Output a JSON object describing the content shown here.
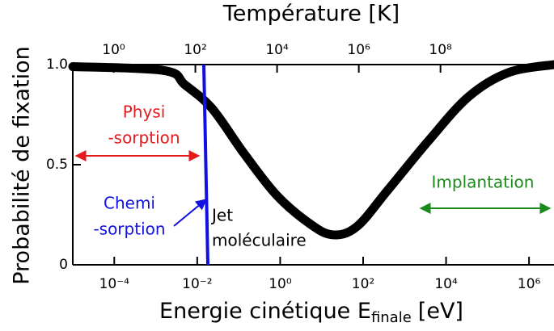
{
  "chart_data": {
    "type": "line",
    "x2_label": "Température [K]",
    "y_label": "Probabilité de fixation",
    "x_label": "Energie cinétique E",
    "x_label_sub": "finale",
    "x_label_unit": "[eV]",
    "xscale": "log",
    "xlim": [
      1e-05,
      4000000
    ],
    "xticks": [
      {
        "value": 0.0001,
        "label": "10⁻⁴"
      },
      {
        "value": 0.01,
        "label": "10⁻²"
      },
      {
        "value": 1,
        "label": "10⁰"
      },
      {
        "value": 100,
        "label": "10²"
      },
      {
        "value": 10000,
        "label": "10⁴"
      },
      {
        "value": 1000000,
        "label": "10⁶"
      }
    ],
    "x2lim": [
      0.1,
      60000000000
    ],
    "x2ticks": [
      {
        "value": 1,
        "label": "10⁰"
      },
      {
        "value": 100,
        "label": "10²"
      },
      {
        "value": 10000,
        "label": "10⁴"
      },
      {
        "value": 1000000,
        "label": "10⁶"
      },
      {
        "value": 100000000,
        "label": "10⁸"
      }
    ],
    "ylim": [
      0,
      1
    ],
    "yticks": [
      0,
      {
        "value": 0.5,
        "label": "0.5"
      },
      {
        "value": 1,
        "label": "1.0"
      }
    ],
    "x": [
      1e-05,
      0.0016,
      0.005,
      0.023,
      0.13,
      0.8,
      4.8,
      18,
      70,
      400,
      3800,
      35000,
      320000,
      4000000
    ],
    "series": [
      {
        "color": "#000000",
        "values": [
          0.99,
          0.97,
          0.9,
          0.78,
          0.56,
          0.35,
          0.21,
          0.15,
          0.19,
          0.375,
          0.62,
          0.84,
          0.96,
          1.0
        ]
      }
    ],
    "annotations": {
      "physi": [
        "Physi",
        "-sorption"
      ],
      "chemi": [
        "Chemi",
        "-sorption"
      ],
      "jet": [
        "Jet",
        "moléculaire"
      ],
      "implantation": "Implantation"
    }
  }
}
